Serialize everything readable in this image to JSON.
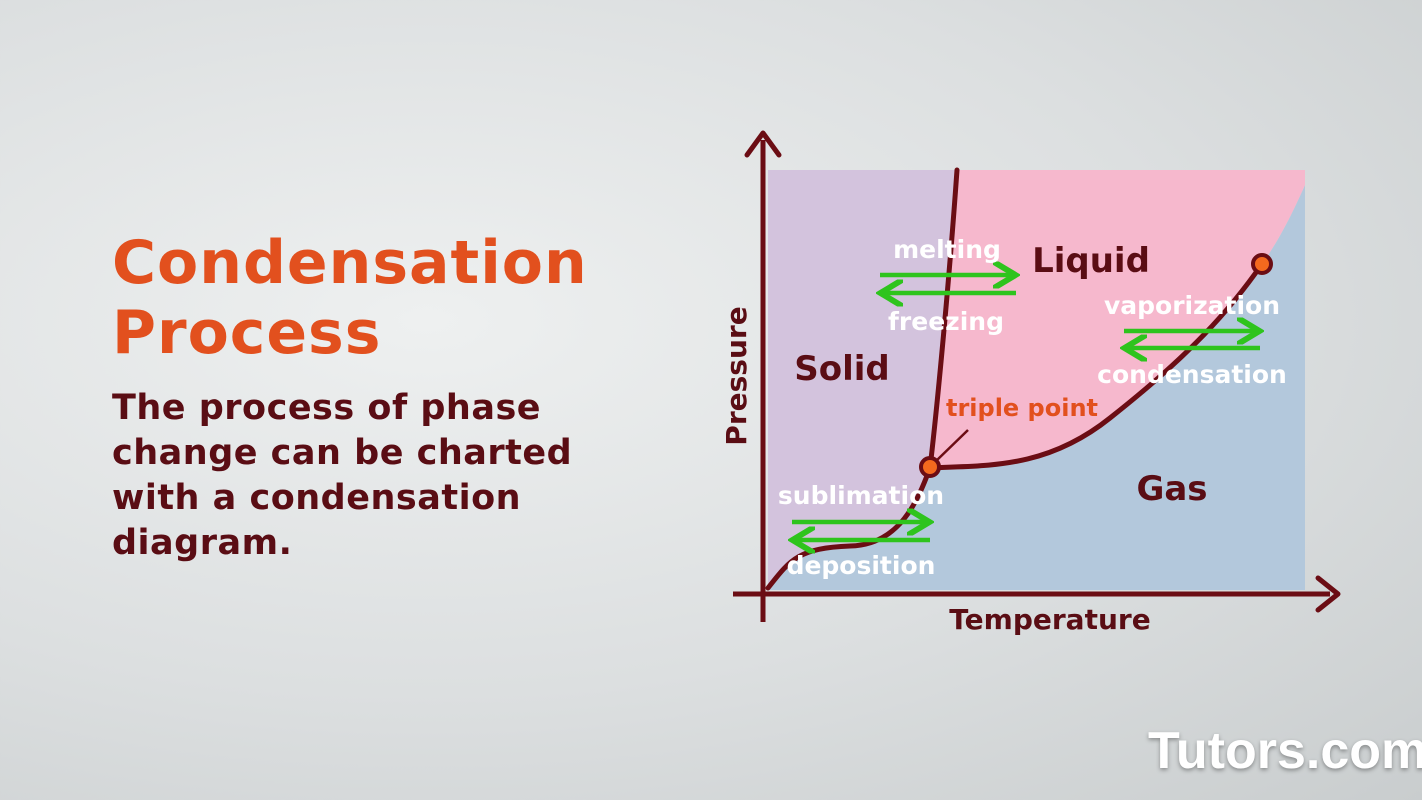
{
  "slide": {
    "title_lines": [
      "Condensation",
      "Process"
    ],
    "description_lines": [
      "The process of phase",
      "change can be charted",
      "with a condensation",
      "diagram."
    ]
  },
  "diagram": {
    "axis_x_label": "Temperature",
    "axis_y_label": "Pressure",
    "regions": {
      "solid": "Solid",
      "liquid": "Liquid",
      "gas": "Gas"
    },
    "transitions": {
      "melting": "melting",
      "freezing": "freezing",
      "vaporization": "vaporization",
      "condensation": "condensation",
      "sublimation": "sublimation",
      "deposition": "deposition"
    },
    "triple_point_label": "triple point",
    "colors": {
      "title": "#e2501e",
      "text": "#5a0d14",
      "solid_region": "#d3c3dd",
      "liquid_region": "#f6b8cd",
      "gas_region": "#b3c8dc",
      "curve": "#6b0d14",
      "arrow": "#2ec41d",
      "point": "#f4691e"
    }
  },
  "brand": "Tutors.com"
}
